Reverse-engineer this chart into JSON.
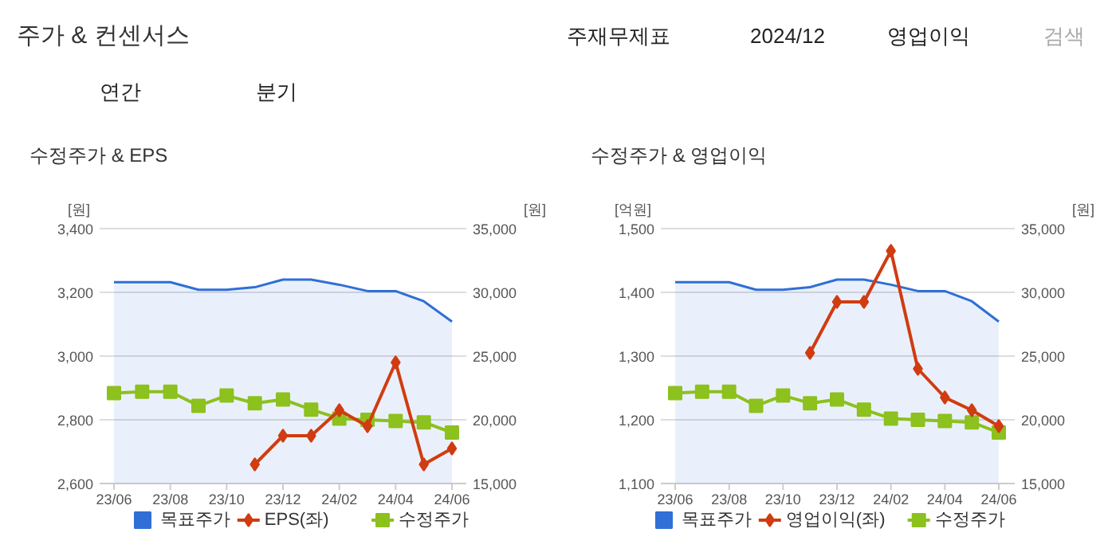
{
  "chart_data": [
    {
      "type": "other",
      "title": "주가 & 컨센서스",
      "annotations": [
        "주재무제표",
        "2024/12",
        "영업이익",
        "검색",
        "연간",
        "분기"
      ]
    },
    {
      "type": "line",
      "title": "수정주가 & EPS",
      "ylabel": "[원]",
      "y2label": "[원]",
      "categories": [
        "23/06",
        null,
        "23/08",
        null,
        "23/10",
        null,
        "23/12",
        null,
        "24/02",
        null,
        "24/04",
        null,
        "24/06"
      ],
      "series": [
        {
          "name": "목표주가",
          "type": "area",
          "axis": "y2",
          "color": "#2f6fd6",
          "marker": "none",
          "values": [
            30800,
            30800,
            30800,
            30200,
            30200,
            30400,
            31000,
            31000,
            30600,
            30100,
            30100,
            29300,
            27700
          ]
        },
        {
          "name": "EPS(좌)",
          "type": "line",
          "color": "#d03c10",
          "marker": "diamond",
          "values": [
            null,
            null,
            null,
            null,
            null,
            2660,
            2750,
            2750,
            2830,
            2780,
            2980,
            2660,
            2710
          ]
        },
        {
          "name": "수정주가",
          "type": "line",
          "axis": "y2",
          "color": "#8cc11e",
          "marker": "square",
          "values": [
            22100,
            22200,
            22200,
            21100,
            21900,
            21300,
            21600,
            20800,
            20100,
            20000,
            19900,
            19800,
            19000
          ]
        }
      ],
      "ylim": [
        2600,
        3400
      ],
      "yticks": [
        {
          "value": 2600,
          "label": "2,600"
        },
        {
          "value": 2800,
          "label": "2,800"
        },
        {
          "value": 3000,
          "label": "3,000"
        },
        {
          "value": 3200,
          "label": "3,200"
        },
        {
          "value": 3400,
          "label": "3,400"
        }
      ],
      "y2lim": [
        15000,
        35000
      ],
      "y2ticks": [
        {
          "value": 15000,
          "label": "15,000"
        },
        {
          "value": 20000,
          "label": "20,000"
        },
        {
          "value": 25000,
          "label": "25,000"
        },
        {
          "value": 30000,
          "label": "30,000"
        },
        {
          "value": 35000,
          "label": "35,000"
        }
      ],
      "grid": "y",
      "legend": "bottom"
    },
    {
      "type": "line",
      "title": "수정주가 & 영업이익",
      "ylabel": "[억원]",
      "y2label": "[원]",
      "categories": [
        "23/06",
        null,
        "23/08",
        null,
        "23/10",
        null,
        "23/12",
        null,
        "24/02",
        null,
        "24/04",
        null,
        "24/06"
      ],
      "series": [
        {
          "name": "목표주가",
          "type": "area",
          "axis": "y2",
          "color": "#2f6fd6",
          "marker": "none",
          "values": [
            30800,
            30800,
            30800,
            30200,
            30200,
            30400,
            31000,
            31000,
            30600,
            30100,
            30100,
            29300,
            27700
          ]
        },
        {
          "name": "영업이익(좌)",
          "type": "line",
          "color": "#d03c10",
          "marker": "diamond",
          "values": [
            null,
            null,
            null,
            null,
            null,
            1305,
            1385,
            1385,
            1465,
            1280,
            1235,
            1215,
            1190
          ]
        },
        {
          "name": "수정주가",
          "type": "line",
          "axis": "y2",
          "color": "#8cc11e",
          "marker": "square",
          "values": [
            22100,
            22200,
            22200,
            21100,
            21900,
            21300,
            21600,
            20800,
            20100,
            20000,
            19900,
            19800,
            19000
          ]
        }
      ],
      "ylim": [
        1100,
        1500
      ],
      "yticks": [
        {
          "value": 1100,
          "label": "1,100"
        },
        {
          "value": 1200,
          "label": "1,200"
        },
        {
          "value": 1300,
          "label": "1,300"
        },
        {
          "value": 1400,
          "label": "1,400"
        },
        {
          "value": 1500,
          "label": "1,500"
        }
      ],
      "y2lim": [
        15000,
        35000
      ],
      "y2ticks": [
        {
          "value": 15000,
          "label": "15,000"
        },
        {
          "value": 20000,
          "label": "20,000"
        },
        {
          "value": 25000,
          "label": "25,000"
        },
        {
          "value": 30000,
          "label": "30,000"
        },
        {
          "value": 35000,
          "label": "35,000"
        }
      ],
      "grid": "y",
      "legend": "bottom"
    }
  ]
}
